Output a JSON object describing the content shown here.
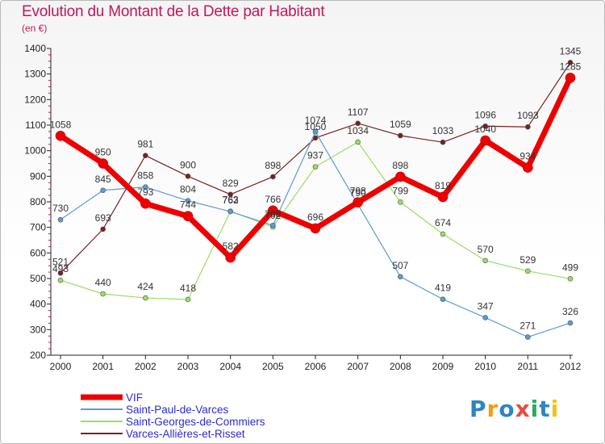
{
  "chart_data": {
    "type": "line",
    "title": "Evolution du Montant de la Dette par Habitant",
    "subtitle": "(en €)",
    "x": [
      "2000",
      "2001",
      "2002",
      "2003",
      "2004",
      "2005",
      "2006",
      "2007",
      "2008",
      "2009",
      "2010",
      "2011",
      "2012"
    ],
    "ylim": [
      200,
      1400
    ],
    "yticks": [
      200,
      300,
      400,
      500,
      600,
      700,
      800,
      900,
      1000,
      1100,
      1200,
      1300,
      1400
    ],
    "grid": false,
    "legend_position": "bottom-left",
    "series": [
      {
        "name": "Varces-Allières-et-Risset",
        "color": "#7a1f1f",
        "width": 1.2,
        "values": [
          521,
          693,
          981,
          900,
          829,
          898,
          1050,
          1107,
          1059,
          1033,
          1096,
          1093,
          1345
        ]
      },
      {
        "name": "Saint-Georges-de-Commiers",
        "color": "#99dd66",
        "width": 1.2,
        "values": [
          493,
          440,
          424,
          418,
          763,
          702,
          937,
          1034,
          799,
          674,
          570,
          529,
          499
        ]
      },
      {
        "name": "Saint-Paul-de-Varces",
        "color": "#5b9bd5",
        "width": 1.2,
        "values": [
          730,
          845,
          858,
          804,
          762,
          708,
          1074,
          790,
          507,
          419,
          347,
          271,
          326
        ]
      },
      {
        "name": "VIF",
        "color": "#ee0000",
        "width": 7,
        "values": [
          1058,
          950,
          793,
          744,
          582,
          766,
          696,
          798,
          898,
          819,
          1040,
          934,
          1285
        ]
      }
    ]
  },
  "legend_order": [
    "VIF",
    "Saint-Paul-de-Varces",
    "Saint-Georges-de-Commiers",
    "Varces-Allières-et-Risset"
  ],
  "logo": {
    "text": "Proxiti",
    "colors": [
      "#2e86c1",
      "#f39c12",
      "#2e86c1",
      "#e74c3c",
      "#27ae60",
      "#2e86c1",
      "#f1c40f"
    ]
  }
}
